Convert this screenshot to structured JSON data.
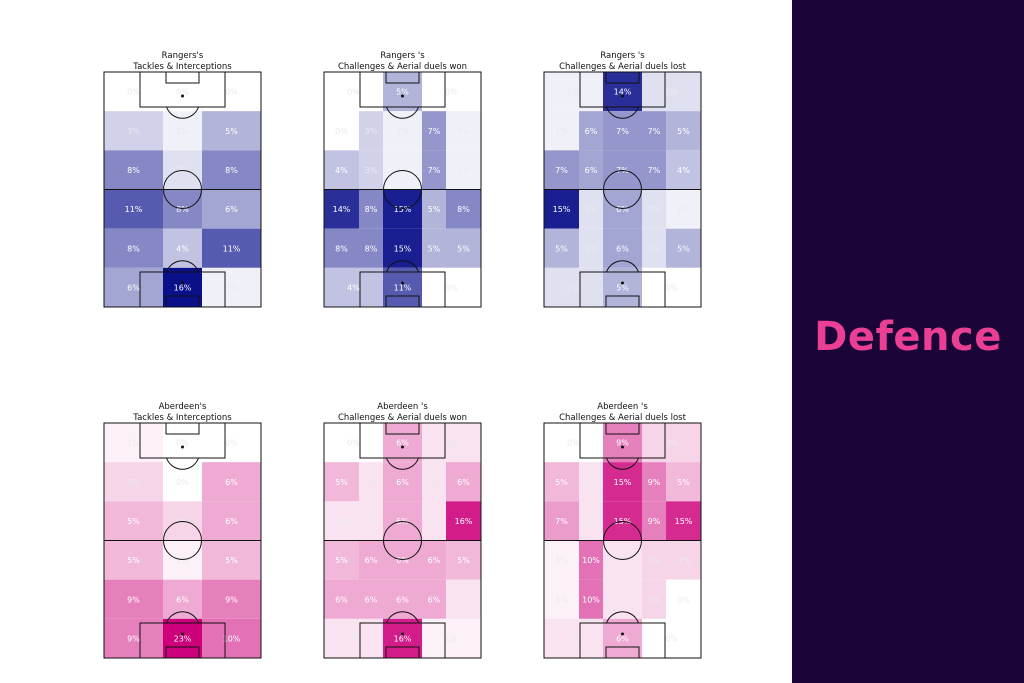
{
  "side_panel": {
    "title": "Defence",
    "background": "#1b0437",
    "title_color": "#ea3f94"
  },
  "chart_data": [
    {
      "type": "heatmap",
      "team": "Rangers",
      "title_line1": "Rangers's",
      "title_line2": "Tackles & Interceptions",
      "colormap": "blue",
      "cells": [
        [
          {
            "v": 0,
            "label": "0%"
          },
          {
            "v": 0,
            "label": "0%"
          },
          {
            "v": 0,
            "label": "0%"
          }
        ],
        [
          {
            "v": 3,
            "label": "3%"
          },
          {
            "v": 1,
            "label": "1%"
          },
          {
            "v": 5,
            "label": "5%"
          }
        ],
        [
          {
            "v": 8,
            "label": "8%"
          },
          {
            "v": 2,
            "label": "2%"
          },
          {
            "v": 8,
            "label": "8%"
          }
        ],
        [
          {
            "v": 11,
            "label": "11%"
          },
          {
            "v": 8,
            "label": "8%"
          },
          {
            "v": 6,
            "label": "6%"
          }
        ],
        [
          {
            "v": 8,
            "label": "8%"
          },
          {
            "v": 4,
            "label": "4%"
          },
          {
            "v": 11,
            "label": "11%"
          }
        ],
        [
          {
            "v": 6,
            "label": "6%"
          },
          {
            "v": 16,
            "label": "16%"
          },
          {
            "v": 1,
            "label": "1%"
          }
        ]
      ]
    },
    {
      "type": "heatmap",
      "team": "Rangers",
      "title_line1": "Rangers 's",
      "title_line2": "Challenges & Aerial duels won",
      "colormap": "blue",
      "cells": [
        [
          {
            "v": 0,
            "label": "0%"
          },
          {
            "v": 5,
            "label": "5%"
          },
          {
            "v": 0,
            "label": "0%"
          }
        ],
        [
          {
            "v": 0,
            "label": "0%"
          },
          {
            "v": 3,
            "label": "3%"
          },
          {
            "v": 1,
            "label": "1%"
          },
          {
            "v": 7,
            "label": "7%"
          },
          {
            "v": 1,
            "label": "1%"
          }
        ],
        [
          {
            "v": 4,
            "label": "4%"
          },
          {
            "v": 3,
            "label": "3%"
          },
          {
            "v": 1,
            "label": "1%"
          },
          {
            "v": 7,
            "label": "7%"
          },
          {
            "v": 1,
            "label": "1%"
          }
        ],
        [
          {
            "v": 14,
            "label": "14%"
          },
          {
            "v": 8,
            "label": "8%"
          },
          {
            "v": 15,
            "label": "15%"
          },
          {
            "v": 5,
            "label": "5%"
          },
          {
            "v": 8,
            "label": "8%"
          }
        ],
        [
          {
            "v": 8,
            "label": "8%"
          },
          {
            "v": 8,
            "label": "8%"
          },
          {
            "v": 15,
            "label": "15%"
          },
          {
            "v": 5,
            "label": "5%"
          },
          {
            "v": 5,
            "label": "5%"
          }
        ],
        [
          {
            "v": 4,
            "label": "4%"
          },
          {
            "v": 11,
            "label": "11%"
          },
          {
            "v": 0,
            "label": "0%"
          }
        ]
      ]
    },
    {
      "type": "heatmap",
      "team": "Rangers",
      "title_line1": "Rangers 's",
      "title_line2": "Challenges & Aerial duels lost",
      "colormap": "blue",
      "cells": [
        [
          {
            "v": 1,
            "label": "1%"
          },
          {
            "v": 14,
            "label": "14%"
          },
          {
            "v": 2,
            "label": "2%"
          }
        ],
        [
          {
            "v": 1,
            "label": "1%"
          },
          {
            "v": 6,
            "label": "6%"
          },
          {
            "v": 7,
            "label": "7%"
          },
          {
            "v": 7,
            "label": "7%"
          },
          {
            "v": 5,
            "label": "5%"
          }
        ],
        [
          {
            "v": 7,
            "label": "7%"
          },
          {
            "v": 6,
            "label": "6%"
          },
          {
            "v": 7,
            "label": "7%"
          },
          {
            "v": 7,
            "label": "7%"
          },
          {
            "v": 4,
            "label": "4%"
          }
        ],
        [
          {
            "v": 15,
            "label": "15%"
          },
          {
            "v": 2,
            "label": "2%"
          },
          {
            "v": 6,
            "label": "6%"
          },
          {
            "v": 2,
            "label": "2%"
          },
          {
            "v": 1,
            "label": "1%"
          }
        ],
        [
          {
            "v": 5,
            "label": "5%"
          },
          {
            "v": 2,
            "label": "2%"
          },
          {
            "v": 6,
            "label": "6%"
          },
          {
            "v": 2,
            "label": "2%"
          },
          {
            "v": 5,
            "label": "5%"
          }
        ],
        [
          {
            "v": 2,
            "label": "2%"
          },
          {
            "v": 5,
            "label": "5%"
          },
          {
            "v": 0,
            "label": "0%"
          }
        ]
      ]
    },
    {
      "type": "heatmap",
      "team": "Aberdeen",
      "title_line1": "Aberdeen's",
      "title_line2": "Tackles & Interceptions",
      "colormap": "pink",
      "cells": [
        [
          {
            "v": 1,
            "label": "1%"
          },
          {
            "v": 0,
            "label": "0%"
          },
          {
            "v": 0,
            "label": "0%"
          }
        ],
        [
          {
            "v": 3,
            "label": "3%"
          },
          {
            "v": 0,
            "label": "0%"
          },
          {
            "v": 6,
            "label": "6%"
          }
        ],
        [
          {
            "v": 5,
            "label": "5%"
          },
          {
            "v": 3,
            "label": "3%"
          },
          {
            "v": 6,
            "label": "6%"
          }
        ],
        [
          {
            "v": 5,
            "label": "5%"
          },
          {
            "v": 1,
            "label": "1%"
          },
          {
            "v": 5,
            "label": "5%"
          }
        ],
        [
          {
            "v": 9,
            "label": "9%"
          },
          {
            "v": 6,
            "label": "6%"
          },
          {
            "v": 9,
            "label": "9%"
          }
        ],
        [
          {
            "v": 9,
            "label": "9%"
          },
          {
            "v": 23,
            "label": "23%"
          },
          {
            "v": 10,
            "label": "10%"
          }
        ]
      ]
    },
    {
      "type": "heatmap",
      "team": "Aberdeen",
      "title_line1": "Aberdeen 's",
      "title_line2": "Challenges & Aerial duels won",
      "colormap": "pink",
      "cells": [
        [
          {
            "v": 0,
            "label": "0%"
          },
          {
            "v": 6,
            "label": "6%"
          },
          {
            "v": 2,
            "label": "2%"
          }
        ],
        [
          {
            "v": 5,
            "label": "5%"
          },
          {
            "v": 2,
            "label": "2%"
          },
          {
            "v": 6,
            "label": "6%"
          },
          {
            "v": 2,
            "label": "2%"
          },
          {
            "v": 6,
            "label": "6%"
          }
        ],
        [
          {
            "v": 2,
            "label": "2%"
          },
          {
            "v": 2,
            "label": "2%"
          },
          {
            "v": 6,
            "label": "6%"
          },
          {
            "v": 2,
            "label": "2%"
          },
          {
            "v": 16,
            "label": "16%"
          }
        ],
        [
          {
            "v": 5,
            "label": "5%"
          },
          {
            "v": 6,
            "label": "6%"
          },
          {
            "v": 6,
            "label": "6%"
          },
          {
            "v": 6,
            "label": "6%"
          },
          {
            "v": 5,
            "label": "5%"
          }
        ],
        [
          {
            "v": 6,
            "label": "6%"
          },
          {
            "v": 6,
            "label": "6%"
          },
          {
            "v": 6,
            "label": "6%"
          },
          {
            "v": 6,
            "label": "6%"
          },
          {
            "v": 2,
            "label": "2%"
          }
        ],
        [
          {
            "v": 2,
            "label": "2%"
          },
          {
            "v": 16,
            "label": "16%"
          },
          {
            "v": 1,
            "label": "1%"
          }
        ]
      ]
    },
    {
      "type": "heatmap",
      "team": "Aberdeen",
      "title_line1": "Aberdeen 's",
      "title_line2": "Challenges & Aerial duels lost",
      "colormap": "pink",
      "cells": [
        [
          {
            "v": 0,
            "label": "0%"
          },
          {
            "v": 9,
            "label": "9%"
          },
          {
            "v": 3,
            "label": "3%"
          }
        ],
        [
          {
            "v": 5,
            "label": "5%"
          },
          {
            "v": 2,
            "label": "2%"
          },
          {
            "v": 15,
            "label": "15%"
          },
          {
            "v": 9,
            "label": "9%"
          },
          {
            "v": 5,
            "label": "5%"
          }
        ],
        [
          {
            "v": 7,
            "label": "7%"
          },
          {
            "v": 2,
            "label": "2%"
          },
          {
            "v": 15,
            "label": "15%"
          },
          {
            "v": 9,
            "label": "9%"
          },
          {
            "v": 15,
            "label": "15%"
          }
        ],
        [
          {
            "v": 1,
            "label": "1%"
          },
          {
            "v": 10,
            "label": "10%"
          },
          {
            "v": 2,
            "label": "2%"
          },
          {
            "v": 3,
            "label": "3%"
          },
          {
            "v": 3,
            "label": "3%"
          }
        ],
        [
          {
            "v": 1,
            "label": "1%"
          },
          {
            "v": 10,
            "label": "10%"
          },
          {
            "v": 2,
            "label": "2%"
          },
          {
            "v": 3,
            "label": "3%"
          },
          {
            "v": 0,
            "label": "0%"
          }
        ],
        [
          {
            "v": 2,
            "label": "2%"
          },
          {
            "v": 6,
            "label": "6%"
          },
          {
            "v": 0,
            "label": "0%"
          }
        ]
      ]
    }
  ]
}
